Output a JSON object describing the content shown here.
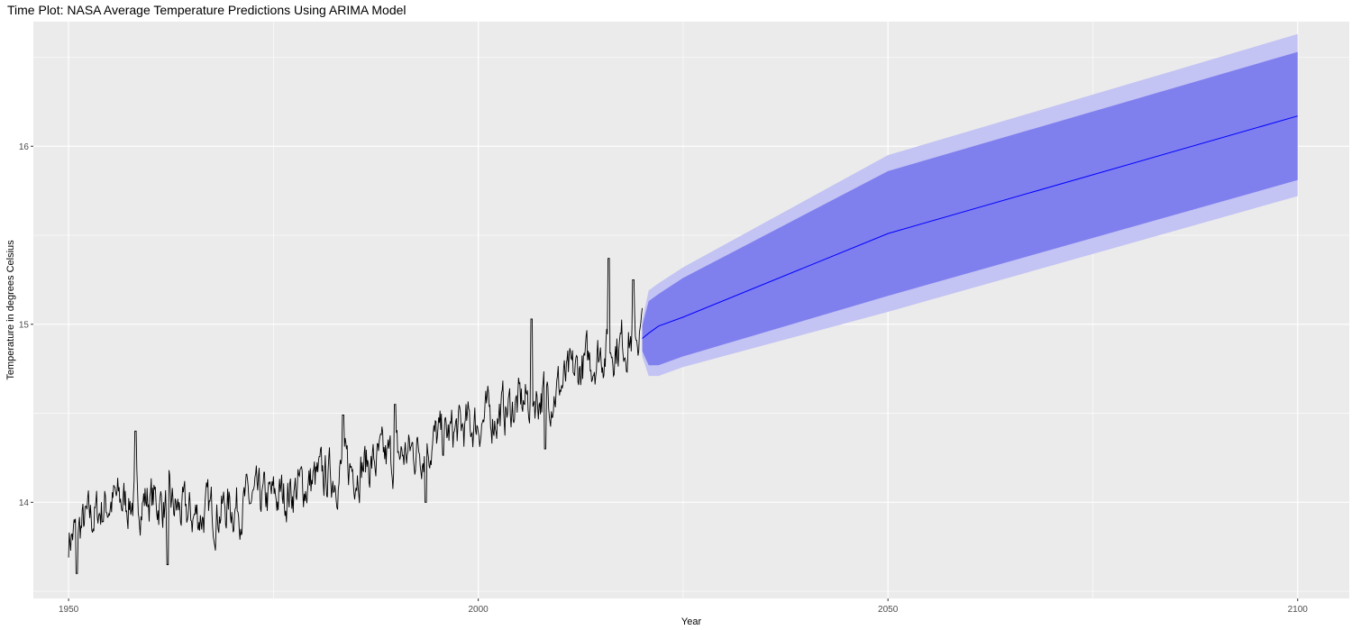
{
  "chart_data": {
    "type": "line",
    "title": "Time Plot: NASA Average Temperature Predictions Using ARIMA Model",
    "xlabel": "Year",
    "ylabel": "Temperature in degrees Celsius",
    "xlim": [
      1945.7,
      2106.3
    ],
    "ylim": [
      13.46,
      16.7
    ],
    "x_ticks": [
      1950,
      2000,
      2050,
      2100
    ],
    "x_tick_labels": [
      "1950",
      "2000",
      "2050",
      "2100"
    ],
    "x_minor_ticks": [
      1975,
      2025,
      2075
    ],
    "y_ticks": [
      14,
      15,
      16
    ],
    "y_tick_labels": [
      "14",
      "15",
      "16"
    ],
    "y_minor_ticks": [
      13.5,
      14.5,
      15.5,
      16.5
    ],
    "grid": true,
    "legend": "none",
    "colors": {
      "panel_background": "#ebebeb",
      "grid": "#ffffff",
      "history_line": "#000000",
      "forecast_line": "#0000ff",
      "band_80": "#7f7fee",
      "band_95": "#c3c3f4"
    },
    "history": {
      "name": "",
      "start": 1950,
      "end": 2020,
      "anchors": [
        [
          1950,
          13.8
        ],
        [
          1955,
          14.0
        ],
        [
          1960,
          14.02
        ],
        [
          1965,
          13.92
        ],
        [
          1970,
          13.98
        ],
        [
          1975,
          14.02
        ],
        [
          1980,
          14.12
        ],
        [
          1985,
          14.2
        ],
        [
          1990,
          14.25
        ],
        [
          1995,
          14.35
        ],
        [
          2000,
          14.45
        ],
        [
          2005,
          14.55
        ],
        [
          2010,
          14.65
        ],
        [
          2015,
          14.85
        ],
        [
          2020,
          14.95
        ]
      ],
      "peaks": [
        [
          1951.0,
          13.6
        ],
        [
          1958.2,
          14.4
        ],
        [
          1962.1,
          13.65
        ],
        [
          1983.5,
          14.49
        ],
        [
          1989.8,
          14.55
        ],
        [
          1993.6,
          14.0
        ],
        [
          2006.5,
          15.03
        ],
        [
          2008.2,
          14.3
        ],
        [
          2015.9,
          15.37
        ],
        [
          2018.9,
          15.25
        ]
      ]
    },
    "forecast": {
      "name": "",
      "x": [
        2020,
        2020.8,
        2022,
        2025,
        2050,
        2100
      ],
      "mean": [
        14.92,
        14.95,
        14.99,
        15.04,
        15.51,
        16.17
      ],
      "lo80": [
        14.85,
        14.77,
        14.77,
        14.82,
        15.16,
        15.81
      ],
      "hi80": [
        14.99,
        15.13,
        15.17,
        15.26,
        15.86,
        16.53
      ],
      "lo95": [
        14.82,
        14.71,
        14.71,
        14.76,
        15.07,
        15.72
      ],
      "hi95": [
        15.02,
        15.19,
        15.23,
        15.32,
        15.95,
        16.63
      ]
    }
  }
}
